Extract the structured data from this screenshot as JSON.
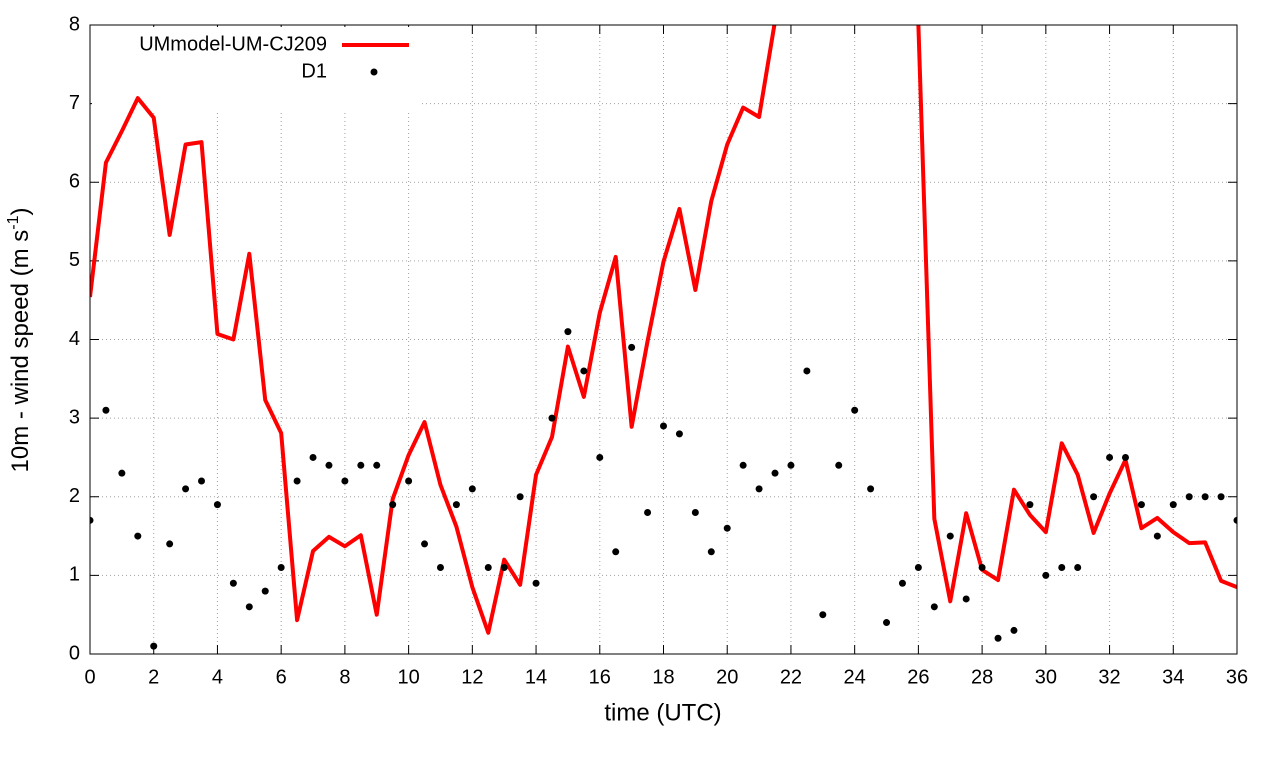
{
  "chart_data": {
    "type": "line",
    "xlabel": "time (UTC)",
    "ylabel": {
      "text": "10m - wind speed  (m s",
      "sup": "-1",
      "end": ")"
    },
    "x": [
      0,
      0.5,
      1,
      1.5,
      2,
      2.5,
      3,
      3.5,
      4,
      4.5,
      5,
      5.5,
      6,
      6.5,
      7,
      7.5,
      8,
      8.5,
      9,
      9.5,
      10,
      10.5,
      11,
      11.5,
      12,
      12.5,
      13,
      13.5,
      14,
      14.5,
      15,
      15.5,
      16,
      16.5,
      17,
      17.5,
      18,
      18.5,
      19,
      19.5,
      20,
      20.5,
      21,
      21.5,
      22,
      22.5,
      23,
      23.5,
      24,
      24.5,
      25,
      25.5,
      26,
      26.5,
      27,
      27.5,
      28,
      28.5,
      29,
      29.5,
      30,
      30.5,
      31,
      31.5,
      32,
      32.5,
      33,
      33.5,
      34,
      34.5,
      35,
      35.5,
      36
    ],
    "series": [
      {
        "name": "UMmodel-UM-CJ209",
        "color": "#ff0000",
        "style": "line",
        "values": [
          4.54,
          6.25,
          6.65,
          7.07,
          6.82,
          5.33,
          6.48,
          6.51,
          4.07,
          4.0,
          5.09,
          3.23,
          2.81,
          0.43,
          1.31,
          1.49,
          1.37,
          1.51,
          0.5,
          1.97,
          2.53,
          2.95,
          2.15,
          1.62,
          0.85,
          0.27,
          1.2,
          0.88,
          2.28,
          2.76,
          3.91,
          3.27,
          4.34,
          5.05,
          2.89,
          3.98,
          4.99,
          5.66,
          4.63,
          5.76,
          6.48,
          6.95,
          6.83,
          8.05,
          null,
          null,
          null,
          null,
          null,
          null,
          null,
          null,
          8.0,
          1.72,
          0.67,
          1.79,
          1.07,
          0.94,
          2.09,
          1.77,
          1.55,
          2.68,
          2.28,
          1.54,
          2.04,
          2.47,
          1.6,
          1.73,
          1.55,
          1.41,
          1.42,
          0.93,
          0.85
        ]
      },
      {
        "name": "D1",
        "color": "#000000",
        "style": "points",
        "values": [
          1.7,
          3.1,
          2.3,
          1.5,
          0.1,
          1.4,
          2.1,
          2.2,
          1.9,
          0.9,
          0.6,
          0.8,
          1.1,
          2.2,
          2.5,
          2.4,
          2.2,
          2.4,
          2.4,
          1.9,
          2.2,
          1.4,
          1.1,
          1.9,
          2.1,
          1.1,
          1.1,
          2.0,
          0.9,
          3.0,
          4.1,
          3.6,
          2.5,
          1.3,
          3.9,
          1.8,
          2.9,
          2.8,
          1.8,
          1.3,
          1.6,
          2.4,
          2.1,
          2.3,
          2.4,
          3.6,
          0.5,
          2.4,
          3.1,
          2.1,
          0.4,
          0.9,
          1.1,
          0.6,
          1.5,
          0.7,
          1.1,
          0.2,
          0.3,
          1.9,
          1.0,
          1.1,
          1.1,
          2.0,
          2.5,
          2.5,
          1.9,
          1.5,
          1.9,
          2.0,
          2.0,
          2.0,
          1.7
        ]
      }
    ],
    "xlim": [
      0,
      36
    ],
    "xticks": [
      0,
      2,
      4,
      6,
      8,
      10,
      12,
      14,
      16,
      18,
      20,
      22,
      24,
      26,
      28,
      30,
      32,
      34,
      36
    ],
    "ylim": [
      0,
      8
    ],
    "yticks": [
      0,
      1,
      2,
      3,
      4,
      5,
      6,
      7,
      8
    ],
    "grid": true,
    "legend": "top-left"
  }
}
